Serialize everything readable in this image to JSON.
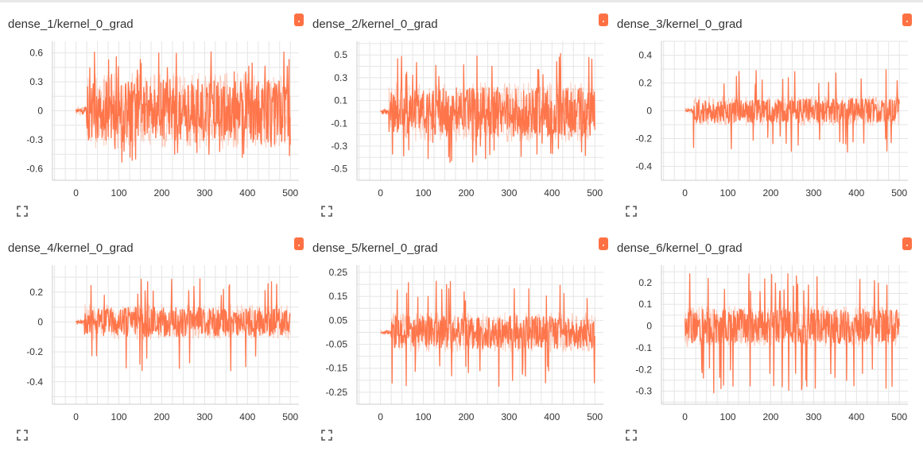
{
  "colors": {
    "series": "#ff7043",
    "grid": "#e5e5e5",
    "axis": "#cccccc",
    "text": "#333333"
  },
  "icons": {
    "run_badge": "orange-run-color-chip",
    "expand": "fullscreen-expand-icon"
  },
  "chart_data": [
    {
      "type": "line",
      "title": "dense_1/kernel_0_grad",
      "xlabel": "",
      "ylabel": "",
      "xlim": [
        -55,
        520
      ],
      "ylim": [
        -0.72,
        0.72
      ],
      "xticks": [
        0,
        100,
        200,
        300,
        400,
        500
      ],
      "yticks": [
        0.6,
        0.3,
        0,
        -0.3,
        -0.6
      ],
      "ytick_labels": [
        "0.6",
        "0.3",
        "0",
        "-0.3",
        "-0.6"
      ],
      "x_range": [
        0,
        500
      ],
      "ramp_steps": 25,
      "ramp_amp": 0.05,
      "envelope": {
        "min": -0.55,
        "max": 0.62,
        "typical": 0.33
      },
      "seed": 11
    },
    {
      "type": "line",
      "title": "dense_2/kernel_0_grad",
      "xlabel": "",
      "ylabel": "",
      "xlim": [
        -55,
        520
      ],
      "ylim": [
        -0.6,
        0.62
      ],
      "xticks": [
        0,
        100,
        200,
        300,
        400,
        500
      ],
      "yticks": [
        0.5,
        0.3,
        0.1,
        -0.1,
        -0.3,
        -0.5
      ],
      "ytick_labels": [
        "0.5",
        "0.3",
        "0.1",
        "-0.1",
        "-0.3",
        "-0.5"
      ],
      "x_range": [
        0,
        500
      ],
      "ramp_steps": 20,
      "ramp_amp": 0.03,
      "envelope": {
        "min": -0.45,
        "max": 0.52,
        "typical": 0.22
      },
      "seed": 23
    },
    {
      "type": "line",
      "title": "dense_3/kernel_0_grad",
      "xlabel": "",
      "ylabel": "",
      "xlim": [
        -55,
        520
      ],
      "ylim": [
        -0.5,
        0.5
      ],
      "xticks": [
        0,
        100,
        200,
        300,
        400,
        500
      ],
      "yticks": [
        0.4,
        0.2,
        0,
        -0.2,
        -0.4
      ],
      "ytick_labels": [
        "0.4",
        "0.2",
        "0",
        "-0.2",
        "-0.4"
      ],
      "x_range": [
        0,
        500
      ],
      "ramp_steps": 20,
      "ramp_amp": 0.02,
      "envelope": {
        "min": -0.3,
        "max": 0.3,
        "typical": 0.09
      },
      "seed": 37
    },
    {
      "type": "line",
      "title": "dense_4/kernel_0_grad",
      "xlabel": "",
      "ylabel": "",
      "xlim": [
        -55,
        520
      ],
      "ylim": [
        -0.55,
        0.38
      ],
      "xticks": [
        0,
        100,
        200,
        300,
        400,
        500
      ],
      "yticks": [
        0.2,
        0,
        -0.2,
        -0.4
      ],
      "ytick_labels": [
        "0.2",
        "0",
        "-0.2",
        "-0.4"
      ],
      "x_range": [
        0,
        500
      ],
      "ramp_steps": 20,
      "ramp_amp": 0.02,
      "envelope": {
        "min": -0.33,
        "max": 0.3,
        "typical": 0.1
      },
      "seed": 41
    },
    {
      "type": "line",
      "title": "dense_5/kernel_0_grad",
      "xlabel": "",
      "ylabel": "",
      "xlim": [
        -55,
        520
      ],
      "ylim": [
        -0.3,
        0.28
      ],
      "xticks": [
        0,
        100,
        200,
        300,
        400,
        500
      ],
      "yticks": [
        0.25,
        0.15,
        0.05,
        -0.05,
        -0.15,
        -0.25
      ],
      "ytick_labels": [
        "0.25",
        "0.15",
        "0.05",
        "-0.05",
        "-0.15",
        "-0.25"
      ],
      "x_range": [
        0,
        500
      ],
      "ramp_steps": 25,
      "ramp_amp": 0.01,
      "envelope": {
        "min": -0.23,
        "max": 0.22,
        "typical": 0.07
      },
      "seed": 53
    },
    {
      "type": "line",
      "title": "dense_6/kernel_0_grad",
      "xlabel": "",
      "ylabel": "",
      "xlim": [
        -55,
        520
      ],
      "ylim": [
        -0.36,
        0.28
      ],
      "xticks": [
        0,
        100,
        200,
        300,
        400,
        500
      ],
      "yticks": [
        0.2,
        0.1,
        0,
        -0.1,
        -0.2,
        -0.3
      ],
      "ytick_labels": [
        "0.2",
        "0.1",
        "0",
        "-0.1",
        "-0.2",
        "-0.3"
      ],
      "x_range": [
        0,
        500
      ],
      "ramp_steps": 0,
      "ramp_amp": 0.0,
      "envelope": {
        "min": -0.31,
        "max": 0.25,
        "typical": 0.08
      },
      "seed": 67
    }
  ]
}
